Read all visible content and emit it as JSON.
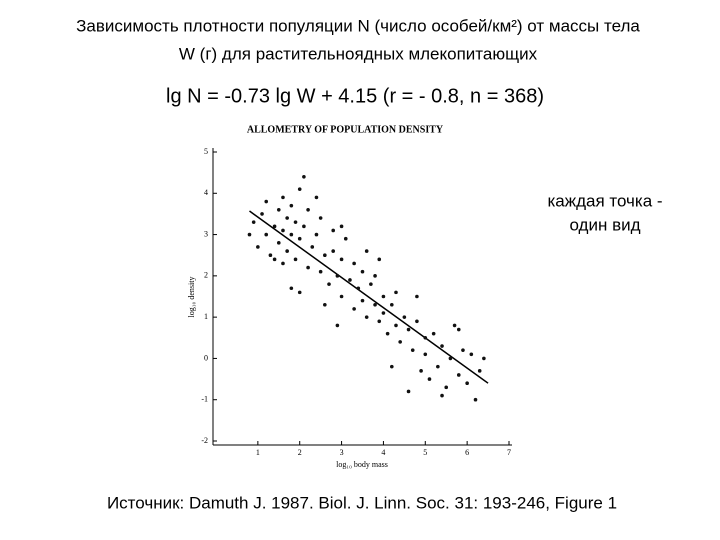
{
  "slide": {
    "heading": [
      "Зависимость плотности популяции N (число особей/км²) от массы тела",
      "W (г) для растительноядных млекопитающих"
    ],
    "equation": "lg N = -0.73 lg W + 4.15 (r = - 0.8, n = 368)",
    "note": [
      "каждая точка -",
      "один вид"
    ],
    "source": "Источник: Damuth J. 1987. Biol. J. Linn. Soc. 31: 193-246, Figure 1"
  },
  "chart_data": {
    "type": "scatter",
    "title": "ALLOMETRY OF POPULATION DENSITY",
    "x_label": "log₁₀ body mass",
    "y_label": "log₁₀ density",
    "color": "#111111",
    "xlim": [
      0,
      7
    ],
    "ylim": [
      -2,
      5
    ],
    "xticks": [
      1,
      2,
      3,
      4,
      5,
      6,
      7
    ],
    "yticks": [
      -2,
      -1,
      0,
      1,
      2,
      3,
      4,
      5
    ],
    "x": [
      0.8,
      0.9,
      1.0,
      1.1,
      1.2,
      1.3,
      1.4,
      1.5,
      1.5,
      1.6,
      1.6,
      1.7,
      1.7,
      1.8,
      1.8,
      1.9,
      1.9,
      2.0,
      2.0,
      2.1,
      2.2,
      2.2,
      2.3,
      2.4,
      2.5,
      2.5,
      2.6,
      2.7,
      2.8,
      2.8,
      2.9,
      3.0,
      3.0,
      3.1,
      3.2,
      3.3,
      3.3,
      3.4,
      3.5,
      3.5,
      3.6,
      3.7,
      3.8,
      3.8,
      3.9,
      4.0,
      4.0,
      4.1,
      4.2,
      4.3,
      4.3,
      4.4,
      4.5,
      4.6,
      4.7,
      4.8,
      4.9,
      5.0,
      5.0,
      5.1,
      5.2,
      5.3,
      5.4,
      5.5,
      5.6,
      5.7,
      5.8,
      5.9,
      6.0,
      6.1,
      6.2,
      6.3,
      6.4,
      1.2,
      1.4,
      1.8,
      2.0,
      2.4,
      2.6,
      3.0,
      3.6,
      4.2,
      4.8,
      5.4,
      1.6,
      2.1,
      2.9,
      3.9,
      4.6,
      5.8
    ],
    "y": [
      3.0,
      3.3,
      2.7,
      3.5,
      3.8,
      2.5,
      3.2,
      3.6,
      2.8,
      3.9,
      3.1,
      3.4,
      2.6,
      3.0,
      3.7,
      2.4,
      3.3,
      4.1,
      2.9,
      3.2,
      2.2,
      3.6,
      2.7,
      3.0,
      2.1,
      3.4,
      2.5,
      1.8,
      2.6,
      3.1,
      2.0,
      2.4,
      1.5,
      2.9,
      1.9,
      2.3,
      1.2,
      1.7,
      2.1,
      1.4,
      1.0,
      1.8,
      1.3,
      2.0,
      0.9,
      1.5,
      1.1,
      0.6,
      1.3,
      0.8,
      1.6,
      0.4,
      1.0,
      0.7,
      0.2,
      0.9,
      -0.3,
      0.5,
      0.1,
      -0.5,
      0.6,
      -0.2,
      0.3,
      -0.7,
      0.0,
      0.8,
      -0.4,
      0.2,
      -0.6,
      0.1,
      -1.0,
      -0.3,
      0.0,
      3.0,
      2.4,
      1.7,
      1.6,
      3.9,
      1.3,
      3.2,
      2.6,
      -0.2,
      1.5,
      -0.9,
      2.3,
      4.4,
      0.8,
      2.4,
      -0.8,
      0.7
    ],
    "trend_line": {
      "x": [
        0.8,
        6.5
      ],
      "y": [
        3.57,
        -0.6
      ]
    }
  }
}
